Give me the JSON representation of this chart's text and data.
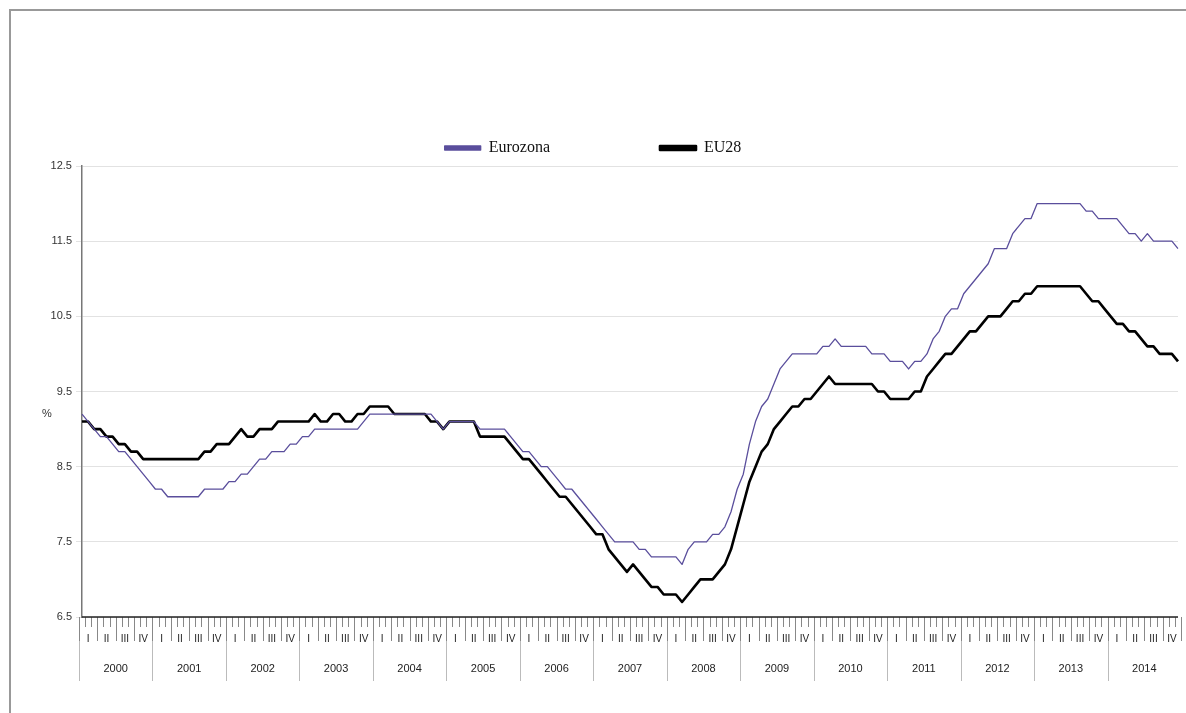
{
  "chart_data": {
    "type": "line",
    "ylabel": "%",
    "categories": [
      null,
      "I",
      null,
      null,
      "II",
      null,
      null,
      "III",
      null,
      null,
      "IV",
      null,
      null,
      "I",
      null,
      null,
      "II",
      null,
      null,
      "III",
      null,
      null,
      "IV",
      null,
      null,
      "I",
      null,
      null,
      "II",
      null,
      null,
      "III",
      null,
      null,
      "IV",
      null,
      null,
      "I",
      null,
      null,
      "II",
      null,
      null,
      "III",
      null,
      null,
      "IV",
      null,
      null,
      "I",
      null,
      null,
      "II",
      null,
      null,
      "III",
      null,
      null,
      "IV",
      null,
      null,
      "I",
      null,
      null,
      "II",
      null,
      null,
      "III",
      null,
      null,
      "IV",
      null,
      null,
      "I",
      null,
      null,
      "II",
      null,
      null,
      "III",
      null,
      null,
      "IV",
      null,
      null,
      "I",
      null,
      null,
      "II",
      null,
      null,
      "III",
      null,
      null,
      "IV",
      null,
      null,
      "I",
      null,
      null,
      "II",
      null,
      null,
      "III",
      null,
      null,
      "IV",
      null,
      null,
      "I",
      null,
      null,
      "II",
      null,
      null,
      "III",
      null,
      null,
      "IV",
      null,
      null,
      "I",
      null,
      null,
      "II",
      null,
      null,
      "III",
      null,
      null,
      "IV",
      null,
      null,
      "I",
      null,
      null,
      "II",
      null,
      null,
      "III",
      null,
      null,
      "IV",
      null,
      null,
      "I",
      null,
      null,
      "II",
      null,
      null,
      "III",
      null,
      null,
      "IV",
      null,
      null,
      "I",
      null,
      null,
      "II",
      null,
      null,
      "III",
      null,
      null,
      "IV",
      null,
      null,
      "I",
      null,
      null,
      "II",
      null,
      null,
      "III",
      null,
      null,
      "IV",
      null
    ],
    "series": [
      {
        "name": "Eurozona",
        "color": "#5a4e9c",
        "values": [
          9.2,
          9.1,
          9.0,
          8.9,
          8.9,
          8.8,
          8.7,
          8.7,
          8.6,
          8.5,
          8.4,
          8.3,
          8.2,
          8.2,
          8.1,
          8.1,
          8.1,
          8.1,
          8.1,
          8.1,
          8.2,
          8.2,
          8.2,
          8.2,
          8.3,
          8.3,
          8.4,
          8.4,
          8.5,
          8.6,
          8.6,
          8.7,
          8.7,
          8.7,
          8.8,
          8.8,
          8.9,
          8.9,
          9.0,
          9.0,
          9.0,
          9.0,
          9.0,
          9.0,
          9.0,
          9.0,
          9.1,
          9.2,
          9.2,
          9.2,
          9.2,
          9.2,
          9.2,
          9.2,
          9.2,
          9.2,
          9.2,
          9.2,
          9.1,
          9.0,
          9.1,
          9.1,
          9.1,
          9.1,
          9.1,
          9.0,
          9.0,
          9.0,
          9.0,
          9.0,
          8.9,
          8.8,
          8.7,
          8.7,
          8.6,
          8.5,
          8.5,
          8.4,
          8.3,
          8.2,
          8.2,
          8.1,
          8.0,
          7.9,
          7.8,
          7.7,
          7.6,
          7.5,
          7.5,
          7.5,
          7.5,
          7.4,
          7.4,
          7.3,
          7.3,
          7.3,
          7.3,
          7.3,
          7.2,
          7.4,
          7.5,
          7.5,
          7.5,
          7.6,
          7.6,
          7.7,
          7.9,
          8.2,
          8.4,
          8.8,
          9.1,
          9.3,
          9.4,
          9.6,
          9.8,
          9.9,
          10.0,
          10.0,
          10.0,
          10.0,
          10.0,
          10.1,
          10.1,
          10.2,
          10.1,
          10.1,
          10.1,
          10.1,
          10.1,
          10.0,
          10.0,
          10.0,
          9.9,
          9.9,
          9.9,
          9.8,
          9.9,
          9.9,
          10.0,
          10.2,
          10.3,
          10.5,
          10.6,
          10.6,
          10.8,
          10.9,
          11.0,
          11.1,
          11.2,
          11.4,
          11.4,
          11.4,
          11.6,
          11.7,
          11.8,
          11.8,
          12.0,
          12.0,
          12.0,
          12.0,
          12.0,
          12.0,
          12.0,
          12.0,
          11.9,
          11.9,
          11.8,
          11.8,
          11.8,
          11.8,
          11.7,
          11.6,
          11.6,
          11.5,
          11.6,
          11.5,
          11.5,
          11.5,
          11.5,
          11.4
        ]
      },
      {
        "name": "EU28",
        "color": "#000000",
        "values": [
          9.1,
          9.1,
          9.0,
          9.0,
          8.9,
          8.9,
          8.8,
          8.8,
          8.7,
          8.7,
          8.6,
          8.6,
          8.6,
          8.6,
          8.6,
          8.6,
          8.6,
          8.6,
          8.6,
          8.6,
          8.7,
          8.7,
          8.8,
          8.8,
          8.8,
          8.9,
          9.0,
          8.9,
          8.9,
          9.0,
          9.0,
          9.0,
          9.1,
          9.1,
          9.1,
          9.1,
          9.1,
          9.1,
          9.2,
          9.1,
          9.1,
          9.2,
          9.2,
          9.1,
          9.1,
          9.2,
          9.2,
          9.3,
          9.3,
          9.3,
          9.3,
          9.2,
          9.2,
          9.2,
          9.2,
          9.2,
          9.2,
          9.1,
          9.1,
          9.0,
          9.1,
          9.1,
          9.1,
          9.1,
          9.1,
          8.9,
          8.9,
          8.9,
          8.9,
          8.9,
          8.8,
          8.7,
          8.6,
          8.6,
          8.5,
          8.4,
          8.3,
          8.2,
          8.1,
          8.1,
          8.0,
          7.9,
          7.8,
          7.7,
          7.6,
          7.6,
          7.4,
          7.3,
          7.2,
          7.1,
          7.2,
          7.1,
          7.0,
          6.9,
          6.9,
          6.8,
          6.8,
          6.8,
          6.7,
          6.8,
          6.9,
          7.0,
          7.0,
          7.0,
          7.1,
          7.2,
          7.4,
          7.7,
          8.0,
          8.3,
          8.5,
          8.7,
          8.8,
          9.0,
          9.1,
          9.2,
          9.3,
          9.3,
          9.4,
          9.4,
          9.5,
          9.6,
          9.7,
          9.6,
          9.6,
          9.6,
          9.6,
          9.6,
          9.6,
          9.6,
          9.5,
          9.5,
          9.4,
          9.4,
          9.4,
          9.4,
          9.5,
          9.5,
          9.7,
          9.8,
          9.9,
          10.0,
          10.0,
          10.1,
          10.2,
          10.3,
          10.3,
          10.4,
          10.5,
          10.5,
          10.5,
          10.6,
          10.7,
          10.7,
          10.8,
          10.8,
          10.9,
          10.9,
          10.9,
          10.9,
          10.9,
          10.9,
          10.9,
          10.9,
          10.8,
          10.7,
          10.7,
          10.6,
          10.5,
          10.4,
          10.4,
          10.3,
          10.3,
          10.2,
          10.1,
          10.1,
          10.0,
          10.0,
          10.0,
          9.9
        ]
      }
    ],
    "ylim": [
      6.5,
      12.5
    ],
    "yticks": [
      6.5,
      7.5,
      8.5,
      9.5,
      10.5,
      11.5,
      12.5
    ],
    "grid": "y",
    "legend": "top",
    "marker": "none",
    "line_style": "solid",
    "annotations": [
      "2000",
      "2001",
      "2002",
      "2003",
      "2004",
      "2005",
      "2006",
      "2007",
      "2008",
      "2009",
      "2010",
      "2011",
      "2012",
      "2013",
      "2014"
    ]
  }
}
